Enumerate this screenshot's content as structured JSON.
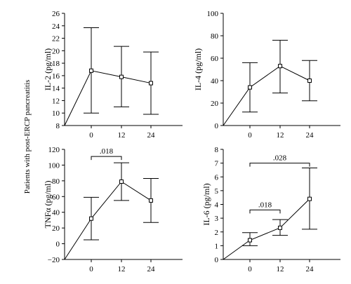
{
  "figure": {
    "side_label": "Patients with post-ERCP pancreatitis"
  },
  "chart_data": [
    {
      "type": "line",
      "ylabel": "IL-2 (pg/ml)",
      "x": [
        "0",
        "12",
        "24"
      ],
      "ylim": [
        8,
        26
      ],
      "yticks": [
        "8",
        "10",
        "12",
        "14",
        "16",
        "18",
        "20",
        "22",
        "24",
        "26"
      ],
      "series": [
        {
          "values": [
            16.8,
            15.8,
            14.8
          ],
          "err_low": [
            10.0,
            11.0,
            9.8
          ],
          "err_high": [
            23.7,
            20.7,
            19.8
          ]
        }
      ],
      "brackets": []
    },
    {
      "type": "line",
      "ylabel": "IL-4 (pg/ml)",
      "x": [
        "0",
        "12",
        "24"
      ],
      "ylim": [
        0,
        100
      ],
      "yticks": [
        "0",
        "20",
        "40",
        "60",
        "80",
        "100"
      ],
      "series": [
        {
          "values": [
            34,
            53,
            40
          ],
          "err_low": [
            12,
            29,
            22
          ],
          "err_high": [
            56,
            76,
            58
          ]
        }
      ],
      "brackets": []
    },
    {
      "type": "line",
      "ylabel": "TNFα (pg/ml)",
      "x": [
        "0",
        "12",
        "24"
      ],
      "ylim": [
        -20,
        120
      ],
      "yticks": [
        "−20",
        "0",
        "20",
        "40",
        "60",
        "80",
        "100",
        "120"
      ],
      "series": [
        {
          "values": [
            32,
            79,
            55
          ],
          "err_low": [
            5,
            55,
            27
          ],
          "err_high": [
            59,
            103,
            83
          ]
        }
      ],
      "brackets": [
        {
          "from": 0,
          "to": 1,
          "label": ".018",
          "level": 111
        }
      ]
    },
    {
      "type": "line",
      "ylabel": "IL-6 (pg/ml)",
      "x": [
        "0",
        "12",
        "24"
      ],
      "ylim": [
        0,
        8
      ],
      "yticks": [
        "0",
        "1",
        "2",
        "3",
        "4",
        "5",
        "6",
        "7",
        "8"
      ],
      "series": [
        {
          "values": [
            1.4,
            2.3,
            4.4
          ],
          "err_low": [
            1.0,
            1.75,
            2.2
          ],
          "err_high": [
            1.95,
            2.9,
            6.65
          ]
        }
      ],
      "brackets": [
        {
          "from": 0,
          "to": 1,
          "label": ".018",
          "level": 3.6
        },
        {
          "from": 0,
          "to": 2,
          "label": ".028",
          "level": 7.0
        }
      ]
    }
  ]
}
